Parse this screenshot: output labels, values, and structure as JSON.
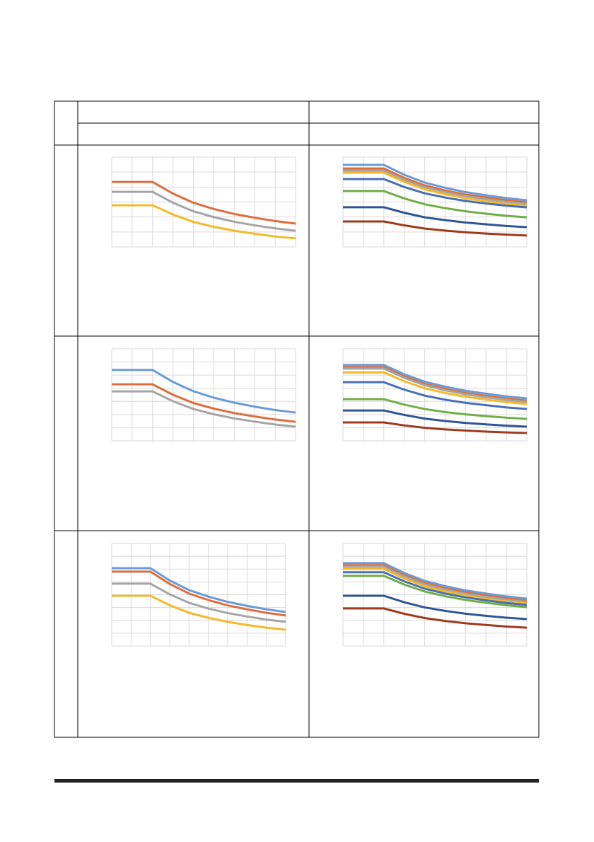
{
  "chart_data": [
    {
      "type": "line",
      "x": [
        0,
        2,
        3,
        4,
        5,
        6,
        7,
        8,
        9
      ],
      "xlim": [
        0,
        9
      ],
      "ylim": [
        0,
        6
      ],
      "xticks": [
        0,
        1,
        2,
        3,
        4,
        5,
        6,
        7,
        8,
        9
      ],
      "yticks": [
        0,
        1,
        2,
        3,
        4,
        5,
        6
      ],
      "grid": true,
      "tick_labels": false,
      "series": [
        {
          "color": "#dd6e3c",
          "values": [
            4.34,
            4.34,
            3.56,
            2.95,
            2.53,
            2.2,
            1.95,
            1.73,
            1.56
          ]
        },
        {
          "color": "#a5a5a5",
          "values": [
            3.68,
            3.68,
            2.95,
            2.38,
            1.99,
            1.68,
            1.44,
            1.24,
            1.08
          ]
        },
        {
          "color": "#f2b92a",
          "values": [
            2.78,
            2.78,
            2.16,
            1.67,
            1.34,
            1.08,
            0.88,
            0.7,
            0.57
          ]
        }
      ]
    },
    {
      "type": "line",
      "x": [
        0,
        2,
        3,
        4,
        5,
        6,
        7,
        8,
        9
      ],
      "xlim": [
        0,
        9
      ],
      "ylim": [
        0,
        6
      ],
      "xticks": [
        0,
        1,
        2,
        3,
        4,
        5,
        6,
        7,
        8,
        9
      ],
      "yticks": [
        0,
        1,
        2,
        3,
        4,
        5,
        6
      ],
      "grid": true,
      "tick_labels": false,
      "series": [
        {
          "color": "#6b9bd7",
          "values": [
            5.48,
            5.48,
            4.82,
            4.3,
            3.95,
            3.66,
            3.45,
            3.26,
            3.12
          ]
        },
        {
          "color": "#dd6e3c",
          "values": [
            5.24,
            5.24,
            4.61,
            4.11,
            3.77,
            3.5,
            3.3,
            3.12,
            2.98
          ]
        },
        {
          "color": "#a5a5a5",
          "values": [
            5.1,
            5.1,
            4.48,
            3.99,
            3.66,
            3.39,
            3.19,
            3.01,
            2.88
          ]
        },
        {
          "color": "#f2b92a",
          "values": [
            4.96,
            4.96,
            4.34,
            3.85,
            3.52,
            3.25,
            3.05,
            2.87,
            2.74
          ]
        },
        {
          "color": "#4a6fb5",
          "values": [
            4.53,
            4.53,
            4.0,
            3.58,
            3.3,
            3.07,
            2.9,
            2.75,
            2.64
          ]
        },
        {
          "color": "#6fae47",
          "values": [
            3.73,
            3.73,
            3.24,
            2.85,
            2.59,
            2.38,
            2.22,
            2.08,
            1.98
          ]
        },
        {
          "color": "#2f5597",
          "values": [
            2.65,
            2.65,
            2.28,
            1.98,
            1.79,
            1.63,
            1.51,
            1.4,
            1.32
          ]
        },
        {
          "color": "#9e3a1e",
          "values": [
            1.7,
            1.7,
            1.44,
            1.23,
            1.09,
            0.98,
            0.89,
            0.82,
            0.76
          ]
        }
      ]
    },
    {
      "type": "line",
      "x": [
        0,
        2,
        3,
        4,
        5,
        6,
        7,
        8,
        9
      ],
      "xlim": [
        0,
        9
      ],
      "ylim": [
        0,
        7
      ],
      "xticks": [
        0,
        1,
        2,
        3,
        4,
        5,
        6,
        7,
        8,
        9
      ],
      "yticks": [
        0,
        1,
        2,
        3,
        4,
        5,
        6,
        7
      ],
      "grid": true,
      "tick_labels": false,
      "series": [
        {
          "color": "#6b9bd7",
          "values": [
            5.39,
            5.39,
            4.48,
            3.77,
            3.28,
            2.9,
            2.6,
            2.34,
            2.15
          ]
        },
        {
          "color": "#dd6e3c",
          "values": [
            4.3,
            4.3,
            3.5,
            2.87,
            2.45,
            2.11,
            1.85,
            1.62,
            1.45
          ]
        },
        {
          "color": "#a5a5a5",
          "values": [
            3.76,
            3.76,
            3.01,
            2.42,
            2.02,
            1.7,
            1.46,
            1.24,
            1.08
          ]
        }
      ]
    },
    {
      "type": "line",
      "x": [
        0,
        2,
        3,
        4,
        5,
        6,
        7,
        8,
        9
      ],
      "xlim": [
        0,
        9
      ],
      "ylim": [
        0,
        7
      ],
      "xticks": [
        0,
        1,
        2,
        3,
        4,
        5,
        6,
        7,
        8,
        9
      ],
      "yticks": [
        0,
        1,
        2,
        3,
        4,
        5,
        6,
        7
      ],
      "grid": true,
      "tick_labels": false,
      "series": [
        {
          "color": "#6b9bd7",
          "values": [
            5.77,
            5.77,
            5.06,
            4.5,
            4.12,
            3.81,
            3.59,
            3.38,
            3.23
          ]
        },
        {
          "color": "#dd6e3c",
          "values": [
            5.6,
            5.6,
            4.89,
            4.33,
            3.95,
            3.64,
            3.42,
            3.21,
            3.06
          ]
        },
        {
          "color": "#a5a5a5",
          "values": [
            5.5,
            5.5,
            4.79,
            4.23,
            3.85,
            3.54,
            3.32,
            3.11,
            2.96
          ]
        },
        {
          "color": "#f2b92a",
          "values": [
            5.2,
            5.2,
            4.53,
            4.0,
            3.64,
            3.35,
            3.14,
            2.94,
            2.8
          ]
        },
        {
          "color": "#4a6fb5",
          "values": [
            4.46,
            4.46,
            3.89,
            3.44,
            3.13,
            2.89,
            2.71,
            2.54,
            2.42
          ]
        },
        {
          "color": "#6fae47",
          "values": [
            3.17,
            3.17,
            2.75,
            2.42,
            2.19,
            2.01,
            1.88,
            1.76,
            1.67
          ]
        },
        {
          "color": "#2f5597",
          "values": [
            2.31,
            2.31,
            1.97,
            1.69,
            1.51,
            1.36,
            1.25,
            1.15,
            1.08
          ]
        },
        {
          "color": "#9e3a1e",
          "values": [
            1.4,
            1.4,
            1.17,
            0.99,
            0.87,
            0.78,
            0.7,
            0.64,
            0.59
          ]
        }
      ]
    },
    {
      "type": "line",
      "x": [
        0,
        2,
        3,
        4,
        5,
        6,
        7,
        8,
        9
      ],
      "xlim": [
        0,
        9
      ],
      "ylim": [
        0,
        8
      ],
      "xticks": [
        0,
        1,
        2,
        3,
        4,
        5,
        6,
        7,
        8,
        9
      ],
      "yticks": [
        0,
        1,
        2,
        3,
        4,
        5,
        6,
        7,
        8
      ],
      "grid": true,
      "tick_labels": false,
      "series": [
        {
          "color": "#6b9bd7",
          "values": [
            6.07,
            6.07,
            5.11,
            4.36,
            3.85,
            3.44,
            3.13,
            2.86,
            2.65
          ]
        },
        {
          "color": "#dd6e3c",
          "values": [
            5.8,
            5.8,
            4.84,
            4.09,
            3.58,
            3.17,
            2.86,
            2.59,
            2.38
          ]
        },
        {
          "color": "#a5a5a5",
          "values": [
            4.86,
            4.86,
            4.03,
            3.37,
            2.92,
            2.57,
            2.3,
            2.06,
            1.88
          ]
        },
        {
          "color": "#f2b92a",
          "values": [
            3.92,
            3.92,
            3.18,
            2.59,
            2.2,
            1.88,
            1.64,
            1.43,
            1.27
          ]
        }
      ]
    },
    {
      "type": "line",
      "x": [
        0,
        2,
        3,
        4,
        5,
        6,
        7,
        8,
        9
      ],
      "xlim": [
        0,
        9
      ],
      "ylim": [
        0,
        8
      ],
      "xticks": [
        0,
        1,
        2,
        3,
        4,
        5,
        6,
        7,
        8,
        9
      ],
      "yticks": [
        0,
        1,
        2,
        3,
        4,
        5,
        6,
        7,
        8
      ],
      "grid": true,
      "tick_labels": false,
      "series": [
        {
          "color": "#6b9bd7",
          "values": [
            6.46,
            6.46,
            5.69,
            5.08,
            4.67,
            4.33,
            4.09,
            3.87,
            3.7
          ]
        },
        {
          "color": "#dd6e3c",
          "values": [
            6.3,
            6.3,
            5.53,
            4.92,
            4.51,
            4.17,
            3.93,
            3.71,
            3.54
          ]
        },
        {
          "color": "#a5a5a5",
          "values": [
            6.19,
            6.19,
            5.42,
            4.81,
            4.4,
            4.06,
            3.82,
            3.6,
            3.43
          ]
        },
        {
          "color": "#f2b92a",
          "values": [
            6.02,
            6.02,
            5.26,
            4.66,
            4.26,
            3.93,
            3.69,
            3.47,
            3.31
          ]
        },
        {
          "color": "#4a6fb5",
          "values": [
            5.75,
            5.75,
            5.04,
            4.47,
            4.09,
            3.79,
            3.56,
            3.35,
            3.2
          ]
        },
        {
          "color": "#6fae47",
          "values": [
            5.47,
            5.47,
            4.79,
            4.25,
            3.88,
            3.59,
            3.37,
            3.18,
            3.03
          ]
        },
        {
          "color": "#2f5597",
          "values": [
            3.92,
            3.92,
            3.41,
            3.01,
            2.74,
            2.52,
            2.35,
            2.21,
            2.1
          ]
        },
        {
          "color": "#9e3a1e",
          "values": [
            2.93,
            2.93,
            2.51,
            2.18,
            1.95,
            1.77,
            1.64,
            1.52,
            1.43
          ]
        }
      ]
    }
  ]
}
